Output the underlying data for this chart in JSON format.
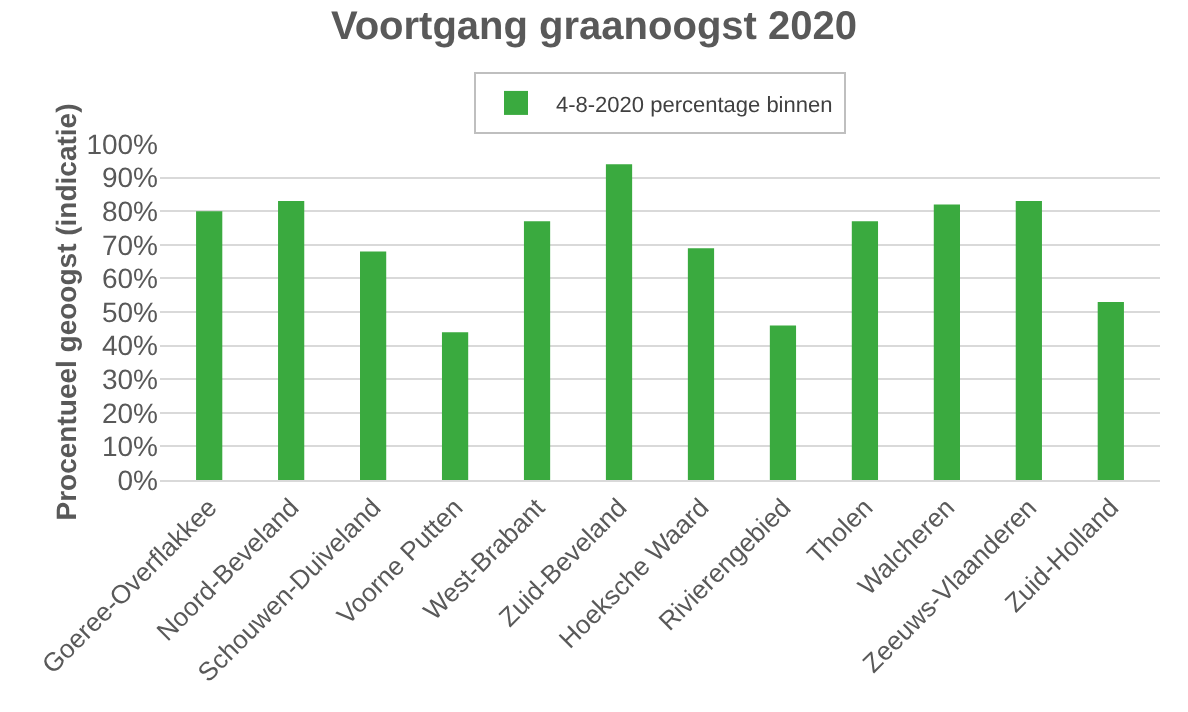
{
  "chart_data": {
    "type": "bar",
    "title": "Voortgang graanoogst 2020",
    "ylabel": "Procentueel geoogst (indicatie)",
    "categories": [
      "Goeree-Overflakkee",
      "Noord-Beveland",
      "Schouwen-Duiveland",
      "Voorne Putten",
      "West-Brabant",
      "Zuid-Beveland",
      "Hoeksche Waard",
      "Rivierengebied",
      "Tholen",
      "Walcheren",
      "Zeeuws-Vlaanderen",
      "Zuid-Holland"
    ],
    "series": [
      {
        "name": "4-8-2020 percentage binnen",
        "color": "#3aaa3f",
        "values": [
          80,
          83,
          68,
          44,
          77,
          94,
          69,
          46,
          77,
          82,
          83,
          53
        ]
      }
    ],
    "ylim": [
      0,
      100
    ],
    "yticks": [
      {
        "value": 0,
        "label": "0%"
      },
      {
        "value": 10,
        "label": "10%"
      },
      {
        "value": 20,
        "label": "20%"
      },
      {
        "value": 30,
        "label": "30%"
      },
      {
        "value": 40,
        "label": "40%"
      },
      {
        "value": 50,
        "label": "50%"
      },
      {
        "value": 60,
        "label": "60%"
      },
      {
        "value": 70,
        "label": "70%"
      },
      {
        "value": 80,
        "label": "80%"
      },
      {
        "value": 90,
        "label": "90%"
      },
      {
        "value": 100,
        "label": "100%"
      }
    ],
    "grid": "y",
    "legend": "top"
  }
}
